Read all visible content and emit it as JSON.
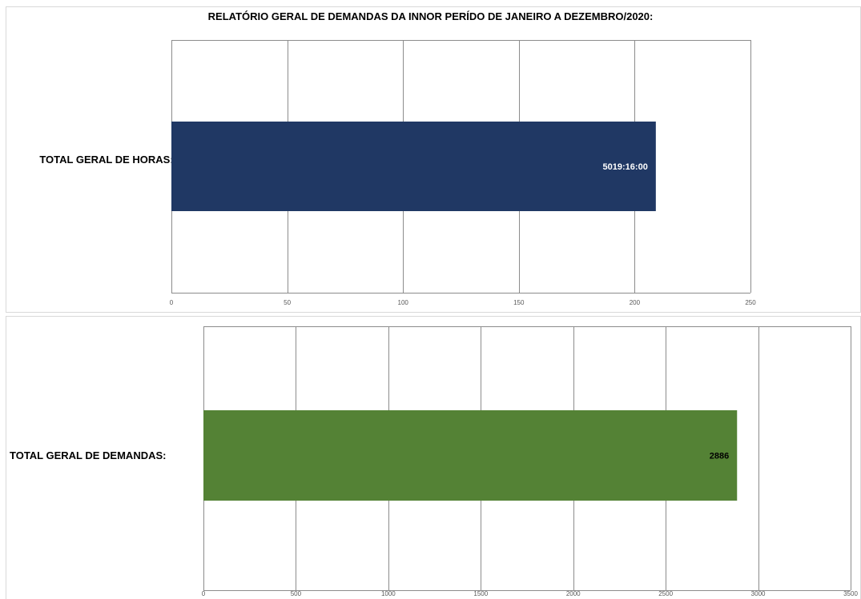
{
  "chart_data": [
    {
      "type": "bar",
      "orientation": "horizontal",
      "title": "RELATÓRIO GERAL DE DEMANDAS DA INNOR PERÍDO DE JANEIRO A DEZEMBRO/2020:",
      "categories": [
        "TOTAL GERAL DE HORAS:"
      ],
      "values": [
        209.14
      ],
      "data_labels": [
        "5019:16:00"
      ],
      "xlim": [
        0,
        250
      ],
      "xticks": [
        0,
        50,
        100,
        150,
        200,
        250
      ],
      "grid": true,
      "legend": "none",
      "bar_color": "#203864",
      "label_color": "#ffffff"
    },
    {
      "type": "bar",
      "orientation": "horizontal",
      "categories": [
        "TOTAL GERAL DE DEMANDAS:"
      ],
      "values": [
        2886
      ],
      "data_labels": [
        "2886"
      ],
      "xlim": [
        0,
        3500
      ],
      "xticks": [
        0,
        500,
        1000,
        1500,
        2000,
        2500,
        3000,
        3500
      ],
      "grid": true,
      "legend": "none",
      "bar_color": "#548235",
      "label_color": "#000000"
    }
  ]
}
